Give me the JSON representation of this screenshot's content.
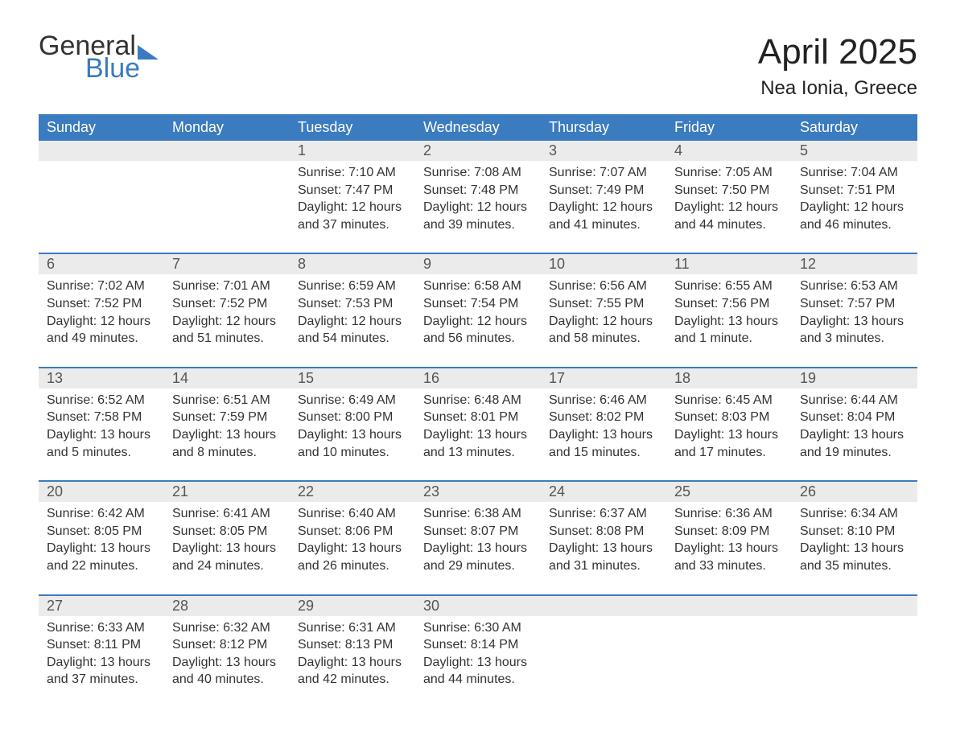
{
  "logo": {
    "text_general": "General",
    "text_blue": "Blue",
    "triangle_color": "#3b7bbf"
  },
  "title": "April 2025",
  "location": "Nea Ionia, Greece",
  "colors": {
    "header_bg": "#3b7bbf",
    "header_text": "#ffffff",
    "daynum_bg": "#ebebeb",
    "row_border": "#3b7bbf",
    "body_text": "#333333",
    "page_bg": "#ffffff"
  },
  "weekdays": [
    "Sunday",
    "Monday",
    "Tuesday",
    "Wednesday",
    "Thursday",
    "Friday",
    "Saturday"
  ],
  "weeks": [
    [
      null,
      null,
      {
        "n": "1",
        "sunrise": "7:10 AM",
        "sunset": "7:47 PM",
        "daylight": "12 hours and 37 minutes."
      },
      {
        "n": "2",
        "sunrise": "7:08 AM",
        "sunset": "7:48 PM",
        "daylight": "12 hours and 39 minutes."
      },
      {
        "n": "3",
        "sunrise": "7:07 AM",
        "sunset": "7:49 PM",
        "daylight": "12 hours and 41 minutes."
      },
      {
        "n": "4",
        "sunrise": "7:05 AM",
        "sunset": "7:50 PM",
        "daylight": "12 hours and 44 minutes."
      },
      {
        "n": "5",
        "sunrise": "7:04 AM",
        "sunset": "7:51 PM",
        "daylight": "12 hours and 46 minutes."
      }
    ],
    [
      {
        "n": "6",
        "sunrise": "7:02 AM",
        "sunset": "7:52 PM",
        "daylight": "12 hours and 49 minutes."
      },
      {
        "n": "7",
        "sunrise": "7:01 AM",
        "sunset": "7:52 PM",
        "daylight": "12 hours and 51 minutes."
      },
      {
        "n": "8",
        "sunrise": "6:59 AM",
        "sunset": "7:53 PM",
        "daylight": "12 hours and 54 minutes."
      },
      {
        "n": "9",
        "sunrise": "6:58 AM",
        "sunset": "7:54 PM",
        "daylight": "12 hours and 56 minutes."
      },
      {
        "n": "10",
        "sunrise": "6:56 AM",
        "sunset": "7:55 PM",
        "daylight": "12 hours and 58 minutes."
      },
      {
        "n": "11",
        "sunrise": "6:55 AM",
        "sunset": "7:56 PM",
        "daylight": "13 hours and 1 minute."
      },
      {
        "n": "12",
        "sunrise": "6:53 AM",
        "sunset": "7:57 PM",
        "daylight": "13 hours and 3 minutes."
      }
    ],
    [
      {
        "n": "13",
        "sunrise": "6:52 AM",
        "sunset": "7:58 PM",
        "daylight": "13 hours and 5 minutes."
      },
      {
        "n": "14",
        "sunrise": "6:51 AM",
        "sunset": "7:59 PM",
        "daylight": "13 hours and 8 minutes."
      },
      {
        "n": "15",
        "sunrise": "6:49 AM",
        "sunset": "8:00 PM",
        "daylight": "13 hours and 10 minutes."
      },
      {
        "n": "16",
        "sunrise": "6:48 AM",
        "sunset": "8:01 PM",
        "daylight": "13 hours and 13 minutes."
      },
      {
        "n": "17",
        "sunrise": "6:46 AM",
        "sunset": "8:02 PM",
        "daylight": "13 hours and 15 minutes."
      },
      {
        "n": "18",
        "sunrise": "6:45 AM",
        "sunset": "8:03 PM",
        "daylight": "13 hours and 17 minutes."
      },
      {
        "n": "19",
        "sunrise": "6:44 AM",
        "sunset": "8:04 PM",
        "daylight": "13 hours and 19 minutes."
      }
    ],
    [
      {
        "n": "20",
        "sunrise": "6:42 AM",
        "sunset": "8:05 PM",
        "daylight": "13 hours and 22 minutes."
      },
      {
        "n": "21",
        "sunrise": "6:41 AM",
        "sunset": "8:05 PM",
        "daylight": "13 hours and 24 minutes."
      },
      {
        "n": "22",
        "sunrise": "6:40 AM",
        "sunset": "8:06 PM",
        "daylight": "13 hours and 26 minutes."
      },
      {
        "n": "23",
        "sunrise": "6:38 AM",
        "sunset": "8:07 PM",
        "daylight": "13 hours and 29 minutes."
      },
      {
        "n": "24",
        "sunrise": "6:37 AM",
        "sunset": "8:08 PM",
        "daylight": "13 hours and 31 minutes."
      },
      {
        "n": "25",
        "sunrise": "6:36 AM",
        "sunset": "8:09 PM",
        "daylight": "13 hours and 33 minutes."
      },
      {
        "n": "26",
        "sunrise": "6:34 AM",
        "sunset": "8:10 PM",
        "daylight": "13 hours and 35 minutes."
      }
    ],
    [
      {
        "n": "27",
        "sunrise": "6:33 AM",
        "sunset": "8:11 PM",
        "daylight": "13 hours and 37 minutes."
      },
      {
        "n": "28",
        "sunrise": "6:32 AM",
        "sunset": "8:12 PM",
        "daylight": "13 hours and 40 minutes."
      },
      {
        "n": "29",
        "sunrise": "6:31 AM",
        "sunset": "8:13 PM",
        "daylight": "13 hours and 42 minutes."
      },
      {
        "n": "30",
        "sunrise": "6:30 AM",
        "sunset": "8:14 PM",
        "daylight": "13 hours and 44 minutes."
      },
      null,
      null,
      null
    ]
  ],
  "labels": {
    "sunrise": "Sunrise:",
    "sunset": "Sunset:",
    "daylight": "Daylight:"
  }
}
